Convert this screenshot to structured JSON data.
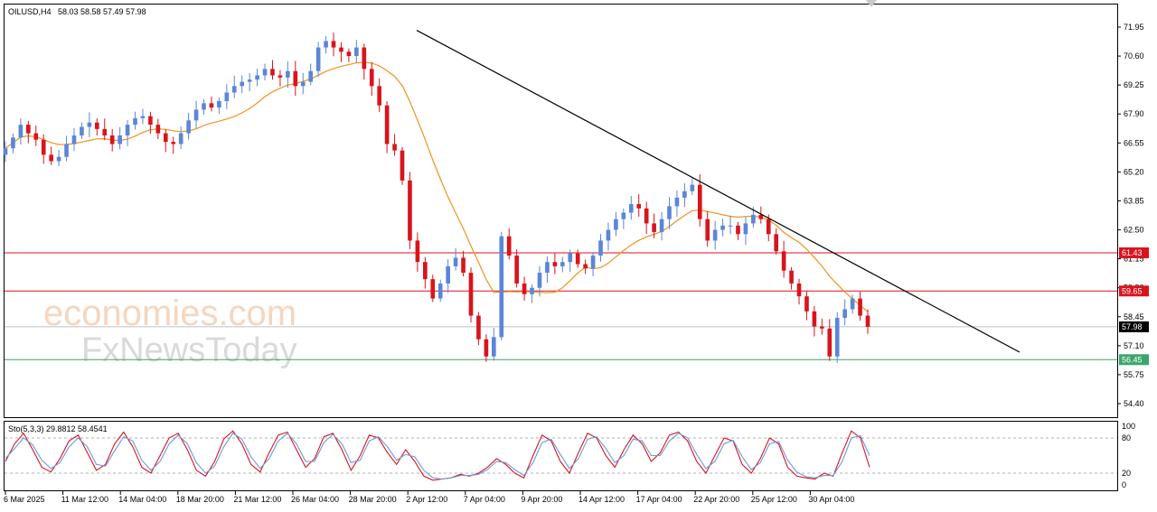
{
  "header": {
    "symbol": "OILUSD,H4",
    "ohlc": "58.03 58.58 57.49 57.98"
  },
  "stoch_header": {
    "label": "Sto(5,3,3) 29.8812 58.4541"
  },
  "watermarks": {
    "line1": "economies.com",
    "line2": "FxNewsToday"
  },
  "colors": {
    "bull": "#5b86d8",
    "bear": "#d9141d",
    "ma": "#f0921e",
    "trendline": "#000000",
    "resistance": "#d9141d",
    "support": "#3aa66a",
    "current": "#000000",
    "stoch_main": "#d9141d",
    "stoch_signal": "#6f9ad6"
  },
  "chart_data": [
    {
      "type": "candlestick",
      "symbol": "OILUSD",
      "timeframe": "H4",
      "y_ticks": [
        "71.95",
        "70.60",
        "69.25",
        "67.90",
        "66.55",
        "65.20",
        "63.85",
        "62.50",
        "61.15",
        "59.80",
        "58.45",
        "57.10",
        "55.75",
        "54.40"
      ],
      "ylim": [
        54.4,
        71.95
      ],
      "x_labels": [
        "6 Mar 2025",
        "11 Mar 12:00",
        "14 Mar 04:00",
        "18 Mar 20:00",
        "21 Mar 12:00",
        "26 Mar 04:00",
        "28 Mar 20:00",
        "2 Apr 12:00",
        "7 Apr 04:00",
        "9 Apr 20:00",
        "14 Apr 12:00",
        "17 Apr 04:00",
        "22 Apr 20:00",
        "25 Apr 12:00",
        "30 Apr 04:00"
      ],
      "close_path": [
        66.3,
        66.8,
        67.4,
        67.0,
        66.7,
        66.0,
        65.7,
        65.9,
        66.5,
        66.9,
        67.3,
        67.5,
        67.2,
        66.9,
        66.5,
        66.9,
        67.4,
        67.7,
        67.8,
        67.4,
        67.0,
        66.6,
        66.5,
        67.0,
        67.6,
        68.1,
        68.4,
        68.2,
        68.5,
        68.9,
        69.2,
        69.4,
        69.5,
        69.7,
        70.0,
        69.7,
        69.6,
        69.9,
        69.2,
        69.4,
        69.9,
        71.0,
        71.3,
        71.0,
        70.8,
        70.6,
        71.0,
        70.0,
        69.2,
        68.3,
        66.5,
        66.2,
        64.8,
        62.0,
        61.0,
        60.2,
        59.3,
        60.0,
        60.8,
        61.2,
        60.5,
        58.5,
        57.4,
        56.6,
        57.5,
        62.2,
        61.3,
        60.0,
        59.5,
        59.8,
        60.5,
        61.0,
        60.8,
        61.0,
        61.4,
        60.9,
        60.7,
        61.3,
        62.0,
        62.5,
        63.0,
        63.3,
        63.7,
        63.5,
        62.8,
        62.4,
        63.0,
        63.6,
        64.0,
        64.3,
        64.6,
        63.0,
        62.0,
        62.5,
        62.7,
        62.7,
        62.3,
        62.8,
        63.2,
        63.0,
        62.3,
        61.5,
        60.6,
        60.0,
        59.4,
        58.7,
        58.0,
        57.9,
        56.6,
        58.4,
        58.8,
        59.3,
        58.5,
        57.98
      ],
      "indicators": [
        {
          "name": "Moving Average",
          "color": "#f0921e"
        }
      ],
      "annotations": [
        {
          "type": "trendline",
          "from": {
            "x": "2 Apr 12:00",
            "y": 71.8
          },
          "to": {
            "x": "after 30 Apr",
            "y": 56.8
          },
          "color": "#000000"
        },
        {
          "type": "hline",
          "y": 61.43,
          "label": "61.43",
          "color": "#d9141d"
        },
        {
          "type": "hline",
          "y": 59.65,
          "label": "59.65",
          "color": "#d9141d"
        },
        {
          "type": "hline",
          "y": 57.98,
          "label": "57.98",
          "color": "#000000",
          "role": "current price"
        },
        {
          "type": "hline",
          "y": 56.45,
          "label": "56.45",
          "color": "#3aa66a"
        }
      ],
      "grid": false
    },
    {
      "type": "line",
      "name": "Sto(5,3,3)",
      "values_text": "29.8812 58.4541",
      "ylim": [
        0,
        100
      ],
      "y_ticks": [
        "100",
        "80",
        "20",
        "0"
      ],
      "levels": [
        80,
        20
      ],
      "series": [
        {
          "color": "#d9141d",
          "values": [
            40,
            70,
            88,
            60,
            30,
            22,
            45,
            75,
            85,
            55,
            25,
            35,
            70,
            90,
            65,
            30,
            20,
            50,
            80,
            88,
            60,
            25,
            15,
            40,
            78,
            92,
            70,
            35,
            22,
            55,
            85,
            90,
            60,
            30,
            45,
            82,
            88,
            60,
            25,
            50,
            85,
            80,
            55,
            35,
            60,
            40,
            15,
            8,
            10,
            12,
            18,
            15,
            20,
            30,
            45,
            35,
            20,
            12,
            50,
            85,
            75,
            40,
            20,
            55,
            88,
            80,
            50,
            30,
            60,
            85,
            70,
            40,
            55,
            85,
            90,
            75,
            40,
            20,
            50,
            80,
            75,
            35,
            20,
            45,
            80,
            70,
            30,
            15,
            12,
            10,
            20,
            15,
            55,
            92,
            80,
            30
          ]
        },
        {
          "color": "#6f9ad6",
          "values": [
            45,
            62,
            80,
            68,
            42,
            28,
            38,
            65,
            80,
            65,
            35,
            32,
            58,
            82,
            75,
            42,
            25,
            40,
            70,
            85,
            70,
            38,
            20,
            32,
            65,
            88,
            78,
            48,
            28,
            45,
            75,
            88,
            70,
            40,
            40,
            72,
            86,
            70,
            38,
            42,
            75,
            82,
            65,
            42,
            52,
            48,
            25,
            12,
            10,
            12,
            16,
            16,
            18,
            26,
            40,
            38,
            26,
            16,
            38,
            72,
            78,
            52,
            28,
            45,
            78,
            82,
            62,
            38,
            50,
            78,
            75,
            50,
            50,
            75,
            88,
            80,
            52,
            28,
            40,
            70,
            76,
            48,
            26,
            38,
            70,
            74,
            42,
            22,
            14,
            12,
            16,
            16,
            40,
            80,
            84,
            50
          ]
        }
      ]
    }
  ]
}
